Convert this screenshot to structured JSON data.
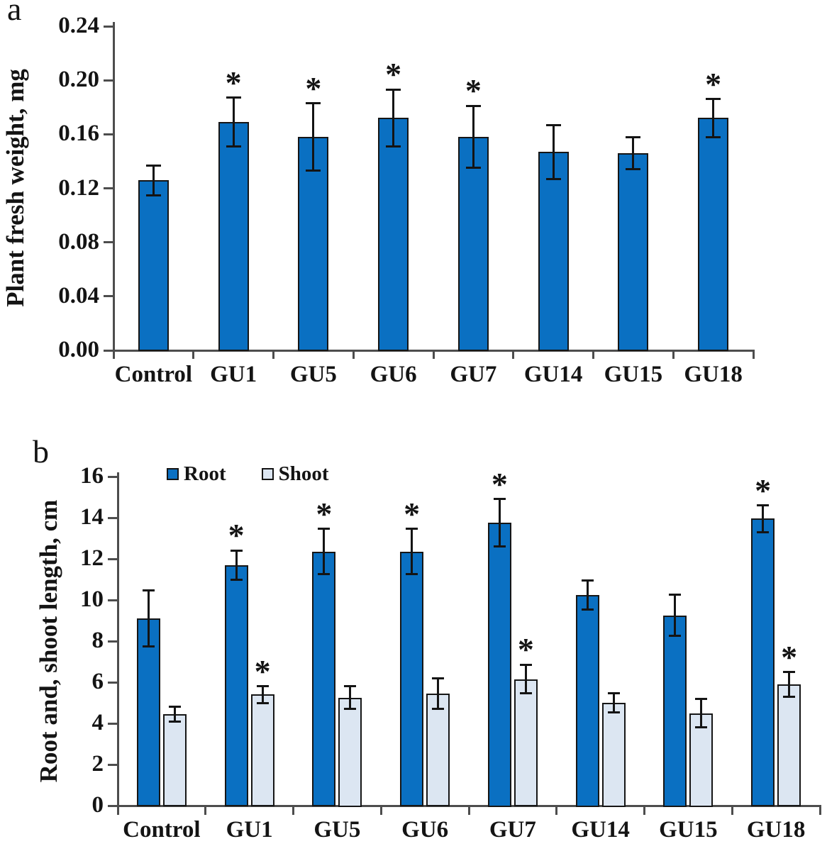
{
  "figure": {
    "background": "#ffffff"
  },
  "colors": {
    "bar_blue": "#0A70C2",
    "bar_light_blue": "#DCE6F2",
    "bar_border": "#161616",
    "axis_line": "#4d4d4d",
    "text": "#141414"
  },
  "chart_data": [
    {
      "id": "a",
      "panel_label": "a",
      "type": "bar",
      "title": "",
      "xlabel": "",
      "ylabel": "Plant fresh weight, mg",
      "categories": [
        "Control",
        "GU1",
        "GU5",
        "GU6",
        "GU7",
        "GU14",
        "GU15",
        "GU18"
      ],
      "series": [
        {
          "name": "Plant fresh weight",
          "color": "#0A70C2",
          "values": [
            0.126,
            0.169,
            0.158,
            0.172,
            0.158,
            0.147,
            0.146,
            0.172
          ],
          "errors": [
            0.011,
            0.018,
            0.025,
            0.021,
            0.023,
            0.02,
            0.012,
            0.014
          ],
          "significant": [
            false,
            true,
            true,
            true,
            true,
            false,
            false,
            true
          ]
        }
      ],
      "ylim": [
        0,
        0.24
      ],
      "yticks": [
        0,
        0.04,
        0.08,
        0.12,
        0.16,
        0.2,
        0.24
      ],
      "ytick_labels": [
        "0.00",
        "0.04",
        "0.08",
        "0.12",
        "0.16",
        "0.20",
        "0.24"
      ],
      "sig_marker": "*",
      "grid": false,
      "legend": null,
      "error_bars": true
    },
    {
      "id": "b",
      "panel_label": "b",
      "type": "bar",
      "title": "",
      "xlabel": "",
      "ylabel": "Root and, shoot length, cm",
      "categories": [
        "Control",
        "GU1",
        "GU5",
        "GU6",
        "GU7",
        "GU14",
        "GU15",
        "GU18"
      ],
      "series": [
        {
          "name": "Root",
          "color": "#0A70C2",
          "values": [
            9.1,
            11.7,
            12.35,
            12.35,
            13.75,
            10.25,
            9.25,
            13.95
          ],
          "errors": [
            1.35,
            0.7,
            1.1,
            1.1,
            1.15,
            0.7,
            1.0,
            0.65
          ],
          "significant": [
            false,
            true,
            true,
            true,
            true,
            false,
            false,
            true
          ]
        },
        {
          "name": "Shoot",
          "color": "#DCE6F2",
          "values": [
            4.45,
            5.4,
            5.25,
            5.45,
            6.15,
            5.0,
            4.5,
            5.9
          ],
          "errors": [
            0.35,
            0.4,
            0.55,
            0.75,
            0.7,
            0.45,
            0.7,
            0.6
          ],
          "significant": [
            false,
            true,
            false,
            false,
            true,
            false,
            false,
            true
          ]
        }
      ],
      "ylim": [
        0,
        16
      ],
      "yticks": [
        0,
        2,
        4,
        6,
        8,
        10,
        12,
        14,
        16
      ],
      "ytick_labels": [
        "0",
        "2",
        "4",
        "6",
        "8",
        "10",
        "12",
        "14",
        "16"
      ],
      "sig_marker": "*",
      "grid": false,
      "legend": {
        "position": "top-inside",
        "entries": [
          "Root",
          "Shoot"
        ]
      },
      "error_bars": true
    }
  ]
}
